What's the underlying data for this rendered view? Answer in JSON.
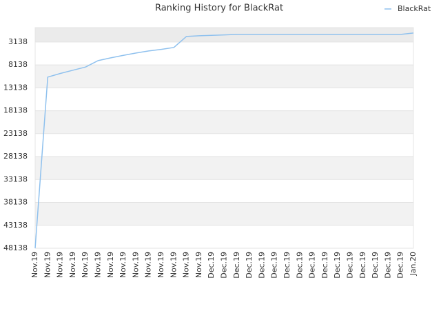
{
  "chart_data": {
    "type": "line",
    "title": "Ranking History for BlackRat",
    "categories": [
      "Nov.19",
      "Nov.19",
      "Nov.19",
      "Nov.19",
      "Nov.19",
      "Nov.19",
      "Nov.19",
      "Nov.19",
      "Nov.19",
      "Nov.19",
      "Nov.19",
      "Nov.19",
      "Nov.19",
      "Nov.19",
      "Dec.19",
      "Dec.19",
      "Dec.19",
      "Dec.19",
      "Dec.19",
      "Dec.19",
      "Dec.19",
      "Dec.19",
      "Dec.19",
      "Dec.19",
      "Dec.19",
      "Dec.19",
      "Dec.19",
      "Dec.19",
      "Dec.19",
      "Dec.19",
      "Jan.20"
    ],
    "series": [
      {
        "name": "BlackRat",
        "color": "#8fc1ee",
        "values": [
          48138,
          10800,
          10000,
          9300,
          8600,
          7200,
          6600,
          6050,
          5550,
          5100,
          4750,
          4340,
          1930,
          1780,
          1700,
          1600,
          1480,
          1480,
          1480,
          1480,
          1480,
          1480,
          1480,
          1480,
          1480,
          1480,
          1480,
          1480,
          1480,
          1480,
          1180
        ]
      }
    ],
    "ylim": [
      0,
      48138
    ],
    "y_reversed": true,
    "yticks": [
      3138,
      8138,
      13138,
      18138,
      23138,
      28138,
      33138,
      38138,
      43138,
      48138
    ],
    "grid": true,
    "legend": "top-right"
  }
}
